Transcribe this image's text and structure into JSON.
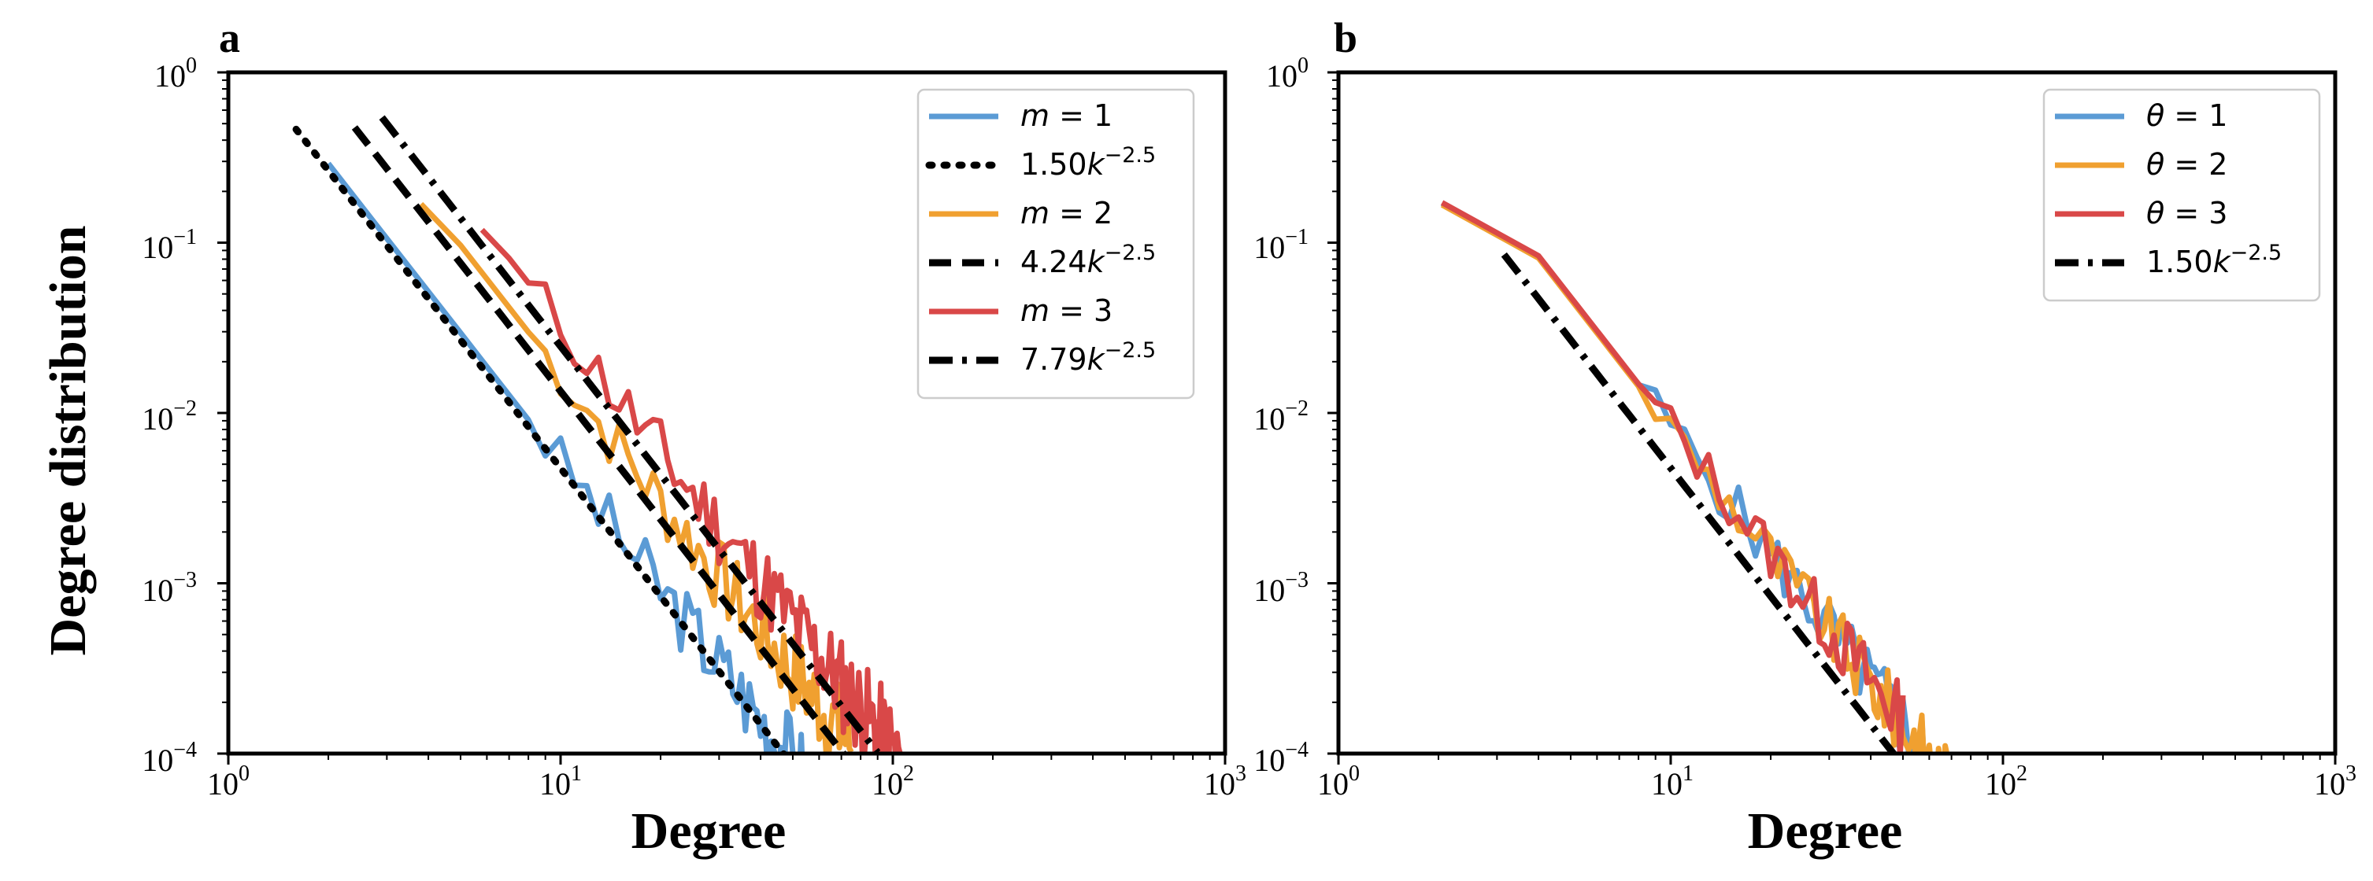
{
  "chart_data": [
    {
      "type": "line",
      "panel": "a",
      "xlabel": "Degree",
      "ylabel": "Degree distribution",
      "xscale": "log",
      "yscale": "log",
      "xlim": [
        1,
        1000
      ],
      "ylim": [
        0.0001,
        1
      ],
      "xticks": [
        {
          "base": "10",
          "exp": "0"
        },
        {
          "base": "10",
          "exp": "1"
        },
        {
          "base": "10",
          "exp": "2"
        },
        {
          "base": "10",
          "exp": "3"
        }
      ],
      "yticks": [
        {
          "base": "10",
          "exp": "0"
        },
        {
          "base": "10",
          "exp": "−1"
        },
        {
          "base": "10",
          "exp": "−2"
        },
        {
          "base": "10",
          "exp": "−3"
        },
        {
          "base": "10",
          "exp": "−4"
        }
      ],
      "legend_position": "top-right",
      "series": [
        {
          "name": "m = 1",
          "label_var": "m",
          "label_rest": " = 1",
          "color": "#5b9bd5",
          "style": "solid",
          "kind": "empirical",
          "x_start": 2,
          "x_end": 60,
          "coef": 1.65,
          "noise": 0.12,
          "seed": 3
        },
        {
          "name": "1.50k^-2.5",
          "label_coef": "1.50",
          "label_var": "k",
          "label_exp": "−2.5",
          "color": "#000000",
          "style": "dotted",
          "kind": "fit",
          "coef": 1.5,
          "exp": -2.5,
          "x_start": 1.6,
          "x_end": 50
        },
        {
          "name": "m = 2",
          "label_var": "m",
          "label_rest": " = 2",
          "color": "#f0a030",
          "style": "solid",
          "kind": "empirical",
          "x_start": 3.8,
          "x_end": 75,
          "coef": 5.4,
          "noise": 0.12,
          "seed": 7
        },
        {
          "name": "4.24k^-2.5",
          "label_coef": "4.24",
          "label_var": "k",
          "label_exp": "−2.5",
          "color": "#000000",
          "style": "dashed",
          "kind": "fit",
          "coef": 4.24,
          "exp": -2.5,
          "x_start": 2.4,
          "x_end": 72
        },
        {
          "name": "m = 3",
          "label_var": "m",
          "label_rest": " = 3",
          "color": "#d94848",
          "style": "solid",
          "kind": "empirical",
          "x_start": 5.8,
          "x_end": 105,
          "coef": 10.5,
          "noise": 0.12,
          "seed": 11
        },
        {
          "name": "7.79k^-2.5",
          "label_coef": "7.79",
          "label_var": "k",
          "label_exp": "−2.5",
          "color": "#000000",
          "style": "dashdot",
          "kind": "fit",
          "coef": 7.79,
          "exp": -2.5,
          "x_start": 2.9,
          "x_end": 90
        }
      ]
    },
    {
      "type": "line",
      "panel": "b",
      "xlabel": "Degree",
      "ylabel": "",
      "xscale": "log",
      "yscale": "log",
      "xlim": [
        1,
        1000
      ],
      "ylim": [
        0.0001,
        1
      ],
      "xticks": [
        {
          "base": "10",
          "exp": "0"
        },
        {
          "base": "10",
          "exp": "1"
        },
        {
          "base": "10",
          "exp": "2"
        },
        {
          "base": "10",
          "exp": "3"
        }
      ],
      "yticks": [
        {
          "base": "10",
          "exp": "0"
        },
        {
          "base": "10",
          "exp": "−1"
        },
        {
          "base": "10",
          "exp": "−2"
        },
        {
          "base": "10",
          "exp": "−3"
        },
        {
          "base": "10",
          "exp": "−4"
        }
      ],
      "legend_position": "top-right",
      "series": [
        {
          "name": "θ = 1",
          "label_var": "θ",
          "label_rest": " = 1",
          "color": "#5b9bd5",
          "style": "solid",
          "kind": "empirical",
          "x_start": 2.05,
          "x_end": 58,
          "coef": 2.65,
          "noise": 0.1,
          "seed": 5
        },
        {
          "name": "θ = 2",
          "label_var": "θ",
          "label_rest": " = 2",
          "color": "#f0a030",
          "style": "solid",
          "kind": "empirical",
          "x_start": 2.05,
          "x_end": 75,
          "coef": 2.6,
          "noise": 0.1,
          "seed": 9
        },
        {
          "name": "θ = 3",
          "label_var": "θ",
          "label_rest": " = 3",
          "color": "#d94848",
          "style": "solid",
          "kind": "empirical",
          "x_start": 2.05,
          "x_end": 50,
          "coef": 2.68,
          "noise": 0.1,
          "seed": 13
        },
        {
          "name": "1.50k^-2.5",
          "label_coef": "1.50",
          "label_var": "k",
          "label_exp": "−2.5",
          "color": "#000000",
          "style": "dashdot",
          "kind": "fit",
          "coef": 1.5,
          "exp": -2.5,
          "x_start": 3.15,
          "x_end": 48
        }
      ]
    }
  ]
}
